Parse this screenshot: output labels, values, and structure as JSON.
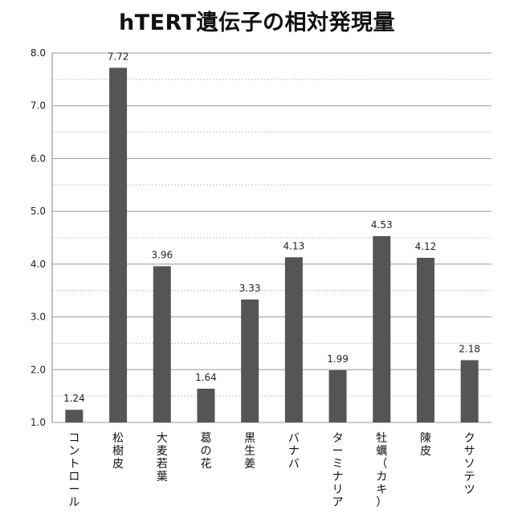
{
  "chart_data": {
    "type": "bar",
    "title": "hTERT遺伝子の相対発現量",
    "xlabel": "",
    "ylabel": "",
    "ylim": [
      1.0,
      8.0
    ],
    "yticks": [
      "1.0",
      "2.0",
      "3.0",
      "4.0",
      "5.0",
      "6.0",
      "7.0",
      "8.0"
    ],
    "grid": true,
    "legend": "none",
    "bar_color": "#555555",
    "categories": [
      "コントロール",
      "松樹皮",
      "大麦若葉",
      "葛の花",
      "黒生姜",
      "バナバ",
      "ターミナリア",
      "牡蠣（カキ）",
      "陳皮",
      "クサソテツ"
    ],
    "values": [
      1.24,
      7.72,
      3.96,
      1.64,
      3.33,
      4.13,
      1.99,
      4.53,
      4.12,
      2.18
    ],
    "value_labels": [
      "1.24",
      "7.72",
      "3.96",
      "1.64",
      "3.33",
      "4.13",
      "1.99",
      "4.53",
      "4.12",
      "2.18"
    ]
  }
}
